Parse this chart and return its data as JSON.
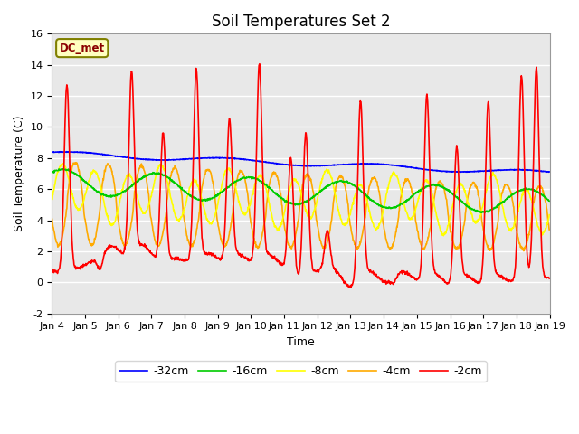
{
  "title": "Soil Temperatures Set 2",
  "xlabel": "Time",
  "ylabel": "Soil Temperature (C)",
  "ylim": [
    -2,
    16
  ],
  "yticks": [
    -2,
    0,
    2,
    4,
    6,
    8,
    10,
    12,
    14,
    16
  ],
  "xtick_labels": [
    "Jan 4",
    "Jan 5",
    "Jan 6",
    "Jan 7",
    "Jan 8",
    "Jan 9",
    "Jan 10",
    "Jan 11",
    "Jan 12",
    "Jan 13",
    "Jan 14",
    "Jan 15",
    "Jan 16",
    "Jan 17",
    "Jan 18",
    "Jan 19"
  ],
  "station_label": "DC_met",
  "legend": [
    "-32cm",
    "-16cm",
    "-8cm",
    "-4cm",
    "-2cm"
  ],
  "colors": [
    "#0000ff",
    "#00cc00",
    "#ffff00",
    "#ffaa00",
    "#ff0000"
  ],
  "bg_color": "#e8e8e8",
  "title_fontsize": 12,
  "axis_label_fontsize": 9,
  "tick_fontsize": 8,
  "legend_fontsize": 9
}
